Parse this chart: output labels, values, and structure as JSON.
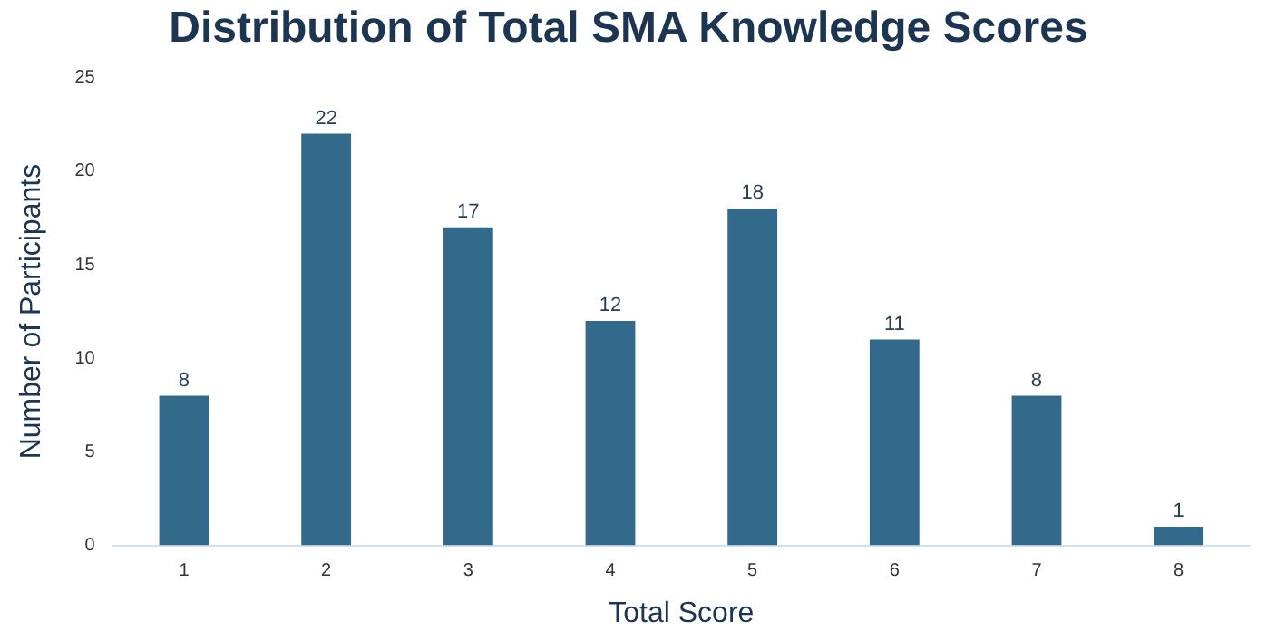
{
  "chart_data": {
    "type": "bar",
    "title": "Distribution of Total SMA Knowledge Scores",
    "xlabel": "Total Score",
    "ylabel": "Number of Participants",
    "categories": [
      "1",
      "2",
      "3",
      "4",
      "5",
      "6",
      "7",
      "8"
    ],
    "values": [
      8,
      22,
      17,
      12,
      18,
      11,
      8,
      1
    ],
    "color": "#336a8b",
    "ylim": [
      0,
      25
    ],
    "yticks": [
      0,
      5,
      10,
      15,
      20,
      25
    ],
    "grid": false,
    "legend": false,
    "data_labels": true
  }
}
